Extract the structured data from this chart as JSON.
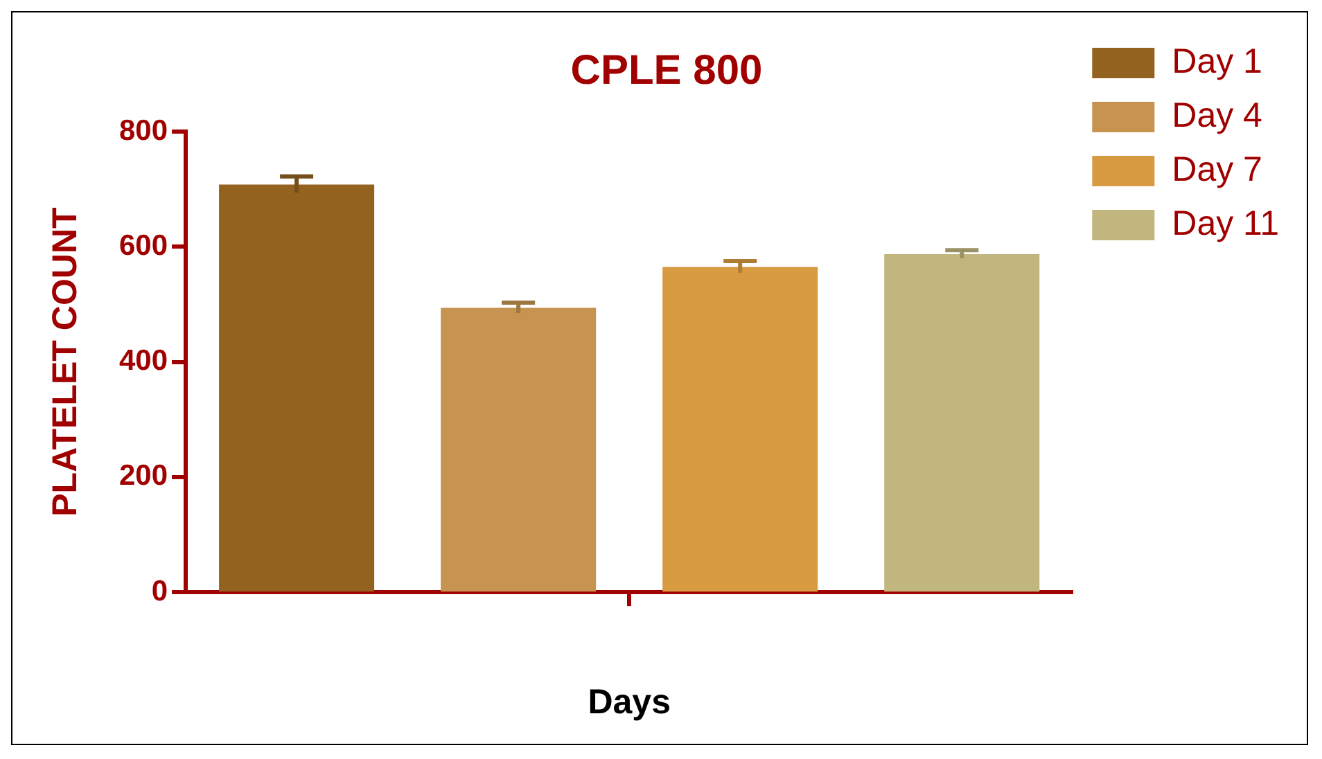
{
  "chart_data": {
    "type": "bar",
    "title": "CPLE 800",
    "xlabel": "Days",
    "ylabel": "PLATELET COUNT",
    "categories": [
      null
    ],
    "series": [
      {
        "name": "Day 1",
        "color": "#94621f",
        "values": [
          708
        ],
        "errors": [
          14
        ]
      },
      {
        "name": "Day 4",
        "color": "#c69450",
        "values": [
          494
        ],
        "errors": [
          9
        ]
      },
      {
        "name": "Day 7",
        "color": "#d99b42",
        "values": [
          565
        ],
        "errors": [
          10
        ]
      },
      {
        "name": "Day 11",
        "color": "#c1b77e",
        "values": [
          587
        ],
        "errors": [
          7
        ]
      }
    ],
    "ylim": [
      0,
      800
    ],
    "yticks": [
      0,
      200,
      400,
      600,
      800
    ],
    "grid": false,
    "legend": "right"
  }
}
